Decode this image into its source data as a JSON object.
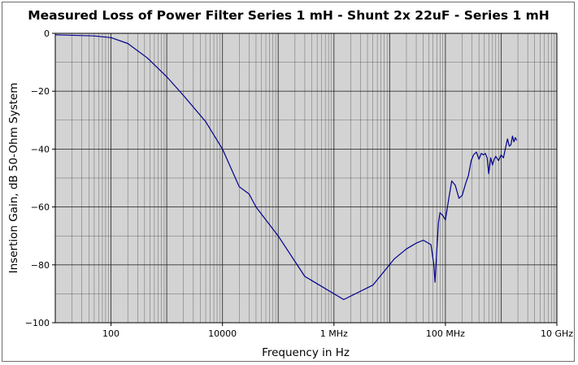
{
  "chart_data": {
    "type": "line",
    "title": "Measured Loss of Power Filter Series 1 mH - Shunt 2x 22uF - Series 1 mH",
    "xlabel": "Frequency in Hz",
    "ylabel": "Insertion Gain, dB  50-Ohm System",
    "x_scale": "log",
    "xlim": [
      10,
      10000000000
    ],
    "ylim": [
      -100,
      0
    ],
    "x_ticks": [
      {
        "value": 100,
        "label": "100"
      },
      {
        "value": 10000,
        "label": "10000"
      },
      {
        "value": 1000000,
        "label": "1 MHz"
      },
      {
        "value": 100000000,
        "label": "100 MHz"
      },
      {
        "value": 10000000000,
        "label": "10 GHz"
      }
    ],
    "y_ticks": [
      {
        "value": 0,
        "label": "0"
      },
      {
        "value": -20,
        "label": "−20"
      },
      {
        "value": -40,
        "label": "−40"
      },
      {
        "value": -60,
        "label": "−60"
      },
      {
        "value": -80,
        "label": "−80"
      },
      {
        "value": -100,
        "label": "−100"
      }
    ],
    "grid": true,
    "colors": {
      "line": "#00008b",
      "plot_bg": "#d3d3d3",
      "grid": "#222222"
    },
    "series": [
      {
        "x": [
          10,
          50,
          100,
          200,
          450,
          1000,
          2000,
          5000,
          10000,
          20000,
          30000,
          40000,
          100000,
          300000,
          1500000,
          5000000,
          12000000,
          20000000,
          30000000,
          40000000,
          55000000,
          62000000,
          65000000,
          70000000,
          75000000,
          80000000,
          90000000,
          100000000,
          115000000,
          130000000,
          150000000,
          175000000,
          200000000,
          230000000,
          260000000,
          290000000,
          320000000,
          360000000,
          400000000,
          440000000,
          480000000,
          520000000,
          560000000,
          600000000,
          650000000,
          700000000,
          750000000,
          800000000,
          900000000,
          1000000000,
          1100000000,
          1200000000,
          1300000000,
          1400000000,
          1500000000,
          1600000000,
          1700000000,
          1800000000,
          1900000000
        ],
        "y": [
          -0.5,
          -0.9,
          -1.5,
          -3.5,
          -8.5,
          -15.0,
          -21.5,
          -30.5,
          -40.0,
          -53.0,
          -55.5,
          -60.0,
          -70.0,
          -84.0,
          -92.0,
          -87.0,
          -78.0,
          -74.5,
          -72.5,
          -71.5,
          -73.0,
          -80.0,
          -86.0,
          -75.0,
          -65.5,
          -62.0,
          -63.0,
          -64.5,
          -57.0,
          -51.0,
          -52.5,
          -57.0,
          -56.0,
          -52.0,
          -49.0,
          -44.0,
          -42.0,
          -41.0,
          -43.5,
          -41.5,
          -42.0,
          -41.5,
          -43.0,
          -48.5,
          -43.0,
          -45.5,
          -43.5,
          -42.5,
          -44.0,
          -42.0,
          -43.0,
          -39.5,
          -36.5,
          -39.0,
          -38.5,
          -35.5,
          -37.5,
          -36.0,
          -37.0
        ]
      }
    ]
  }
}
